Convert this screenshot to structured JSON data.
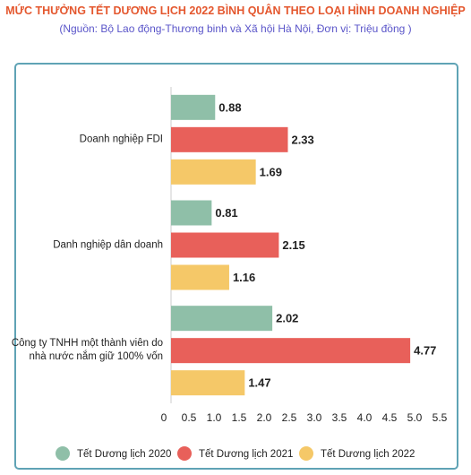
{
  "chart_data": {
    "type": "hbar",
    "title": "MỨC THƯỞNG TẾT DƯƠNG LỊCH 2022 BÌNH QUÂN THEO LOẠI HÌNH DOANH NGHIỆP",
    "subtitle": "(Nguồn: Bộ Lao động-Thương binh và Xã hội Hà Nội, Đơn vị: Triệu đồng )",
    "categories": [
      "Doanh nghiệp FDI",
      "Danh nghiệp dân doanh",
      "Công ty TNHH một thành viên do\nnhà nước nắm giữ 100% vốn"
    ],
    "series": [
      {
        "name": "Tết Dương lịch 2020",
        "color": "#8fbfa8",
        "values": [
          0.88,
          0.81,
          2.02
        ]
      },
      {
        "name": "Tết Dương lịch 2021",
        "color": "#e8605a",
        "values": [
          2.33,
          2.15,
          4.77
        ]
      },
      {
        "name": "Tết Dương lịch 2022",
        "color": "#f5c868",
        "values": [
          1.69,
          1.16,
          1.47
        ]
      }
    ],
    "xlim": [
      0,
      5.5
    ],
    "xticks": [
      0,
      0.5,
      {
        "value": 1,
        "label": "1.0"
      },
      1.5,
      {
        "value": 2,
        "label": "2.0"
      },
      2.5,
      {
        "value": 3,
        "label": "3.0"
      },
      3.5,
      {
        "value": 4,
        "label": "4.0"
      },
      4.5,
      {
        "value": 5,
        "label": "5.0"
      },
      5.5
    ],
    "legend": "bottom"
  }
}
